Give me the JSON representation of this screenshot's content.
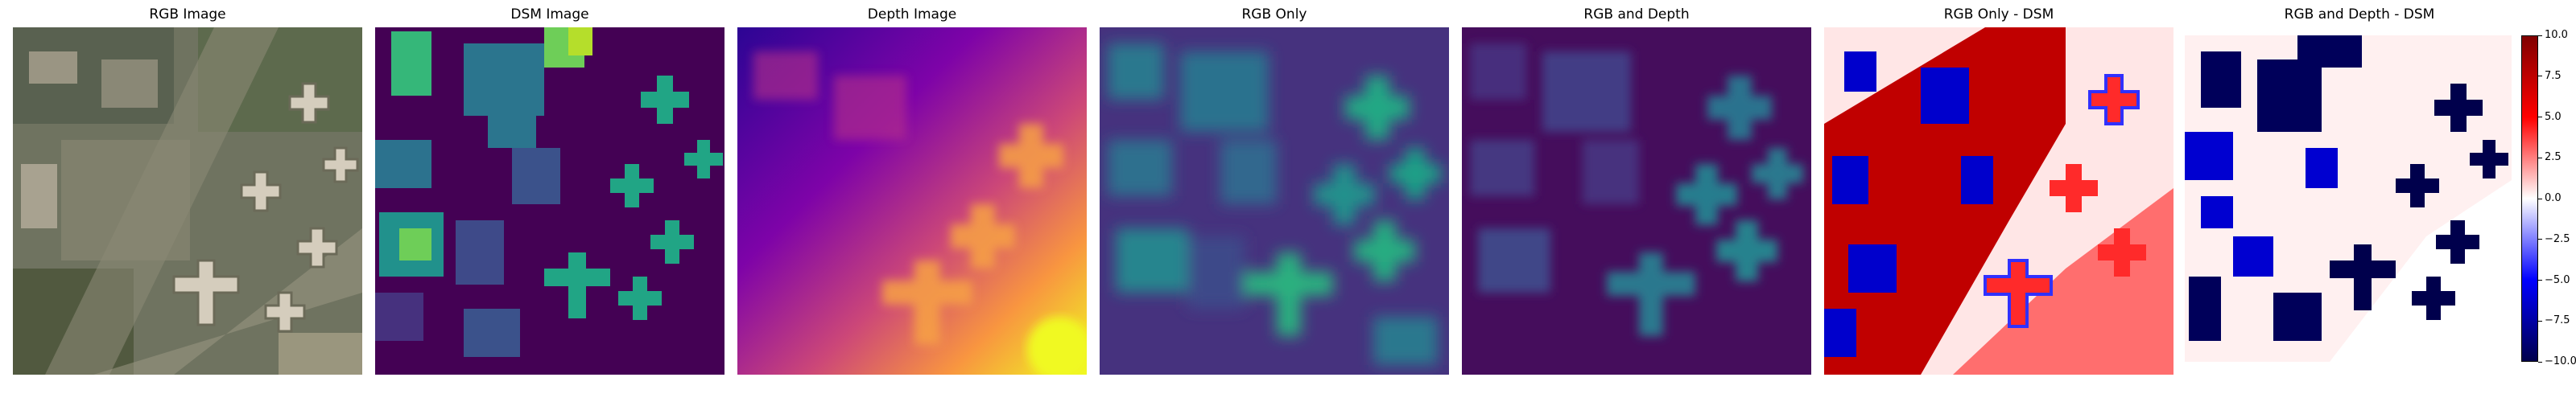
{
  "panels": [
    {
      "title": "RGB Image",
      "colormap": "natural-aerial-photo"
    },
    {
      "title": "DSM Image",
      "colormap": "viridis"
    },
    {
      "title": "Depth Image",
      "colormap": "plasma"
    },
    {
      "title": "RGB Only",
      "colormap": "viridis"
    },
    {
      "title": "RGB and Depth",
      "colormap": "viridis"
    },
    {
      "title": "RGB Only - DSM",
      "colormap": "seismic"
    },
    {
      "title": "RGB and Depth - DSM",
      "colormap": "seismic"
    }
  ],
  "colorbar": {
    "colors": [
      "#800000",
      "#ff0000",
      "#ffffff",
      "#0000ff",
      "#00004c"
    ],
    "ticks": [
      "10.0",
      "7.5",
      "5.0",
      "2.5",
      "0.0",
      "−2.5",
      "−5.0",
      "−7.5",
      "−10.0"
    ]
  }
}
